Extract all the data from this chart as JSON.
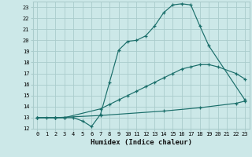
{
  "xlabel": "Humidex (Indice chaleur)",
  "bg_color": "#cce8e8",
  "grid_color": "#aacccc",
  "line_color": "#1a6e6a",
  "xlim": [
    -0.5,
    23.5
  ],
  "ylim": [
    12,
    23.5
  ],
  "xticks": [
    0,
    1,
    2,
    3,
    4,
    5,
    6,
    7,
    8,
    9,
    10,
    11,
    12,
    13,
    14,
    15,
    16,
    17,
    18,
    19,
    20,
    21,
    22,
    23
  ],
  "yticks": [
    12,
    13,
    14,
    15,
    16,
    17,
    18,
    19,
    20,
    21,
    22,
    23
  ],
  "line1_x": [
    0,
    1,
    2,
    3,
    4,
    5,
    6,
    7,
    8,
    9,
    10,
    11,
    12,
    13,
    14,
    15,
    16,
    17,
    18,
    19,
    23
  ],
  "line1_y": [
    13,
    13,
    13,
    13,
    13,
    12.7,
    12.2,
    13.3,
    16.2,
    19.1,
    19.9,
    20.0,
    20.4,
    21.3,
    22.5,
    23.2,
    23.3,
    23.2,
    21.3,
    19.5,
    14.6
  ],
  "line2_x": [
    0,
    2,
    3,
    7,
    8,
    9,
    10,
    11,
    12,
    13,
    14,
    15,
    16,
    17,
    18,
    19,
    20,
    22,
    23
  ],
  "line2_y": [
    13,
    13,
    13,
    13.8,
    14.2,
    14.6,
    15.0,
    15.4,
    15.8,
    16.2,
    16.6,
    17.0,
    17.4,
    17.6,
    17.8,
    17.8,
    17.6,
    17.0,
    16.5
  ],
  "line3_x": [
    0,
    2,
    7,
    14,
    18,
    22,
    23
  ],
  "line3_y": [
    13,
    13,
    13.2,
    13.6,
    13.9,
    14.3,
    14.5
  ]
}
